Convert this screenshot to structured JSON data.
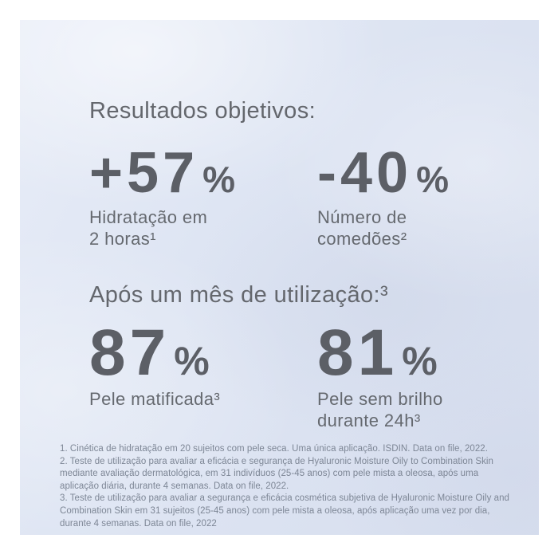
{
  "colors": {
    "page_background": "#ffffff",
    "panel_background": "#dde4f2",
    "heading_text": "#64676d",
    "stat_number_text": "#5c5f66",
    "stat_label_text": "#65696f",
    "footnote_text": "#7d8695"
  },
  "headings": {
    "results": "Resultados objetivos:",
    "after_month": "Após um mês de utilização:³"
  },
  "stats": [
    {
      "value": "+57",
      "unit": "%",
      "label_line1": "Hidratação em",
      "label_line2": "2 horas¹"
    },
    {
      "value": "-40",
      "unit": "%",
      "label_line1": "Número de",
      "label_line2": "comedões²"
    },
    {
      "value": "87",
      "unit": "%",
      "label_line1": "Pele matificada³"
    },
    {
      "value": "81",
      "unit": "%",
      "label_line1": "Pele sem brilho",
      "label_line2": "durante 24h³"
    }
  ],
  "footnotes": {
    "lines": [
      "1. Cinética de hidratação em 20 sujeitos com pele seca. Uma única aplicação. ISDIN. Data on file, 2022.",
      "2. Teste de utilização para avaliar a eficácia e segurança de Hyaluronic Moisture Oily to Combination Skin",
      "mediante avaliação dermatológica, em 31 indivíduos (25-45 anos)  com pele mista a oleosa, após uma",
      "aplicação diária, durante 4 semanas. Data on file, 2022.",
      "3. Teste de utilização para avaliar a segurança e eficácia cosmética subjetiva de Hyaluronic Moisture Oily and",
      "Combination Skin em 31 sujeitos (25-45 anos) com pele mista a oleosa, após aplicação uma vez por dia,",
      "durante 4 semanas. Data on file, 2022"
    ]
  }
}
